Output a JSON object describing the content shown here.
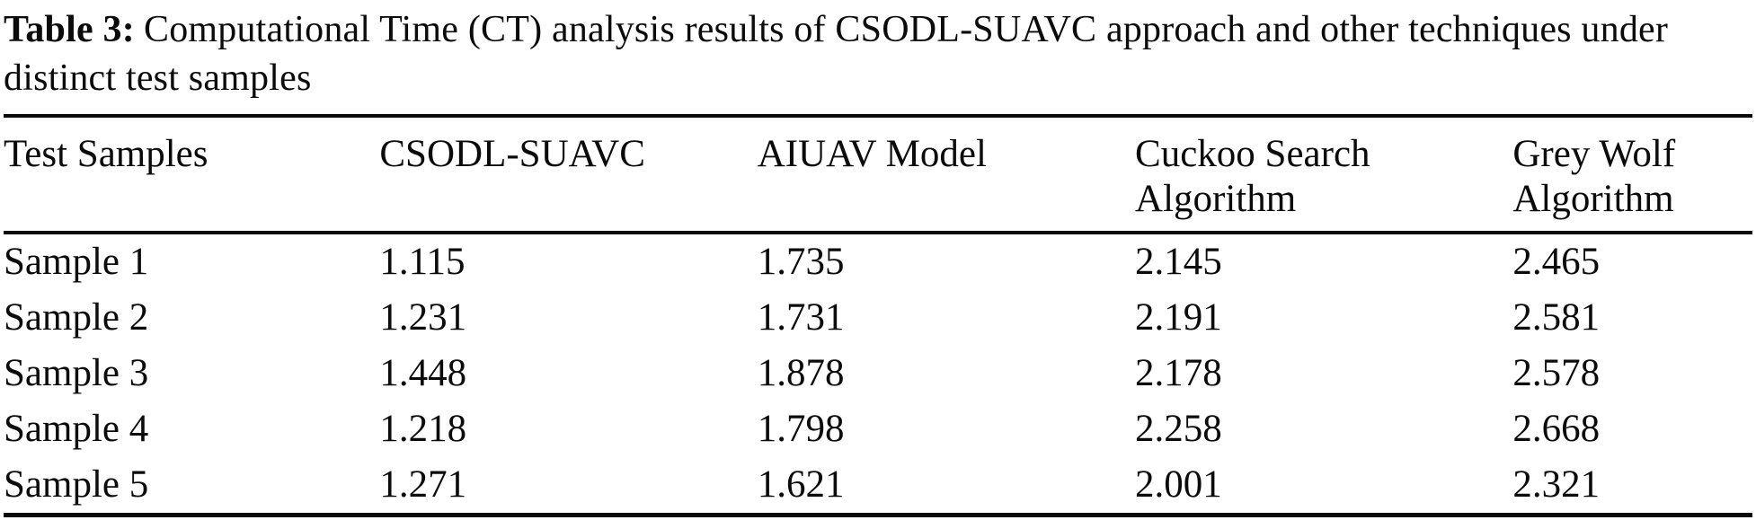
{
  "caption": {
    "label": "Table 3:",
    "text": "Computational Time (CT) analysis results of CSODL-SUAVC approach and other techniques under distinct test samples"
  },
  "table": {
    "columns": [
      "Test Samples",
      "CSODL-SUAVC",
      "AIUAV Model",
      "Cuckoo Search Algorithm",
      "Grey Wolf Algorithm"
    ],
    "rows": [
      {
        "label": "Sample 1",
        "values": [
          "1.115",
          "1.735",
          "2.145",
          "2.465"
        ]
      },
      {
        "label": "Sample 2",
        "values": [
          "1.231",
          "1.731",
          "2.191",
          "2.581"
        ]
      },
      {
        "label": "Sample 3",
        "values": [
          "1.448",
          "1.878",
          "2.178",
          "2.578"
        ]
      },
      {
        "label": "Sample 4",
        "values": [
          "1.218",
          "1.798",
          "2.258",
          "2.668"
        ]
      },
      {
        "label": "Sample 5",
        "values": [
          "1.271",
          "1.621",
          "2.001",
          "2.321"
        ]
      }
    ]
  },
  "chart_data": {
    "type": "table",
    "title": "Table 3: Computational Time (CT) analysis results of CSODL-SUAVC approach and other techniques under distinct test samples",
    "categories": [
      "Sample 1",
      "Sample 2",
      "Sample 3",
      "Sample 4",
      "Sample 5"
    ],
    "series": [
      {
        "name": "CSODL-SUAVC",
        "values": [
          1.115,
          1.231,
          1.448,
          1.218,
          1.271
        ]
      },
      {
        "name": "AIUAV Model",
        "values": [
          1.735,
          1.731,
          1.878,
          1.798,
          1.621
        ]
      },
      {
        "name": "Cuckoo Search Algorithm",
        "values": [
          2.145,
          2.191,
          2.178,
          2.258,
          2.001
        ]
      },
      {
        "name": "Grey Wolf Algorithm",
        "values": [
          2.465,
          2.581,
          2.578,
          2.668,
          2.321
        ]
      }
    ],
    "colors": {
      "text": "#0b0b0b",
      "background": "#ffffff",
      "rule": "#0b0b0b"
    }
  }
}
